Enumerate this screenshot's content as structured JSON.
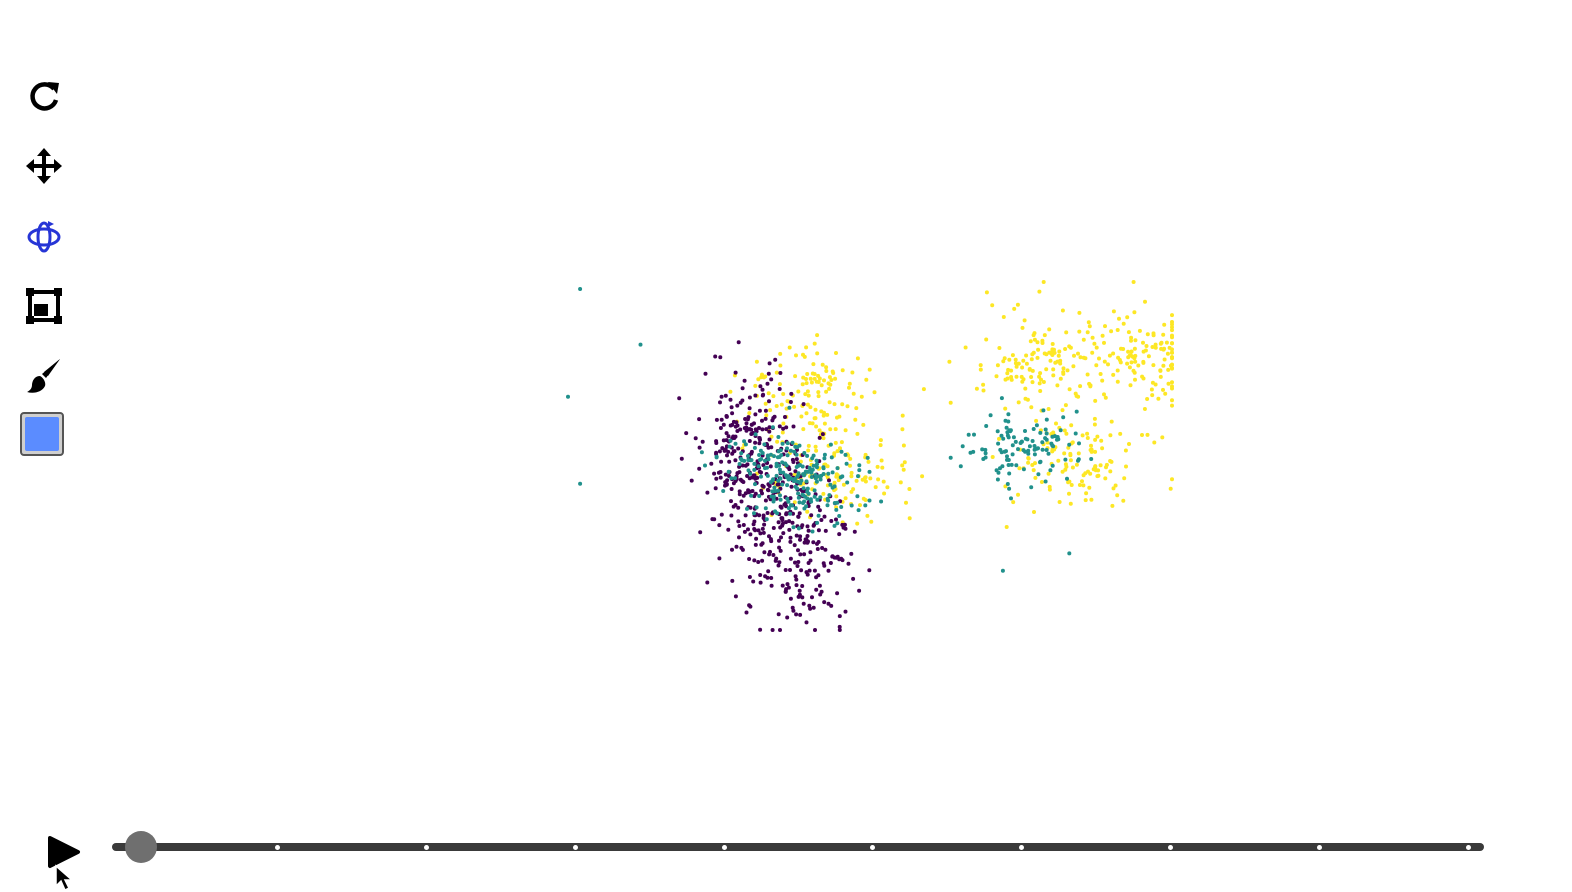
{
  "toolbar": {
    "tools": [
      {
        "name": "reset-view",
        "icon": "redo-icon",
        "active": false
      },
      {
        "name": "pan",
        "icon": "move-arrows-icon",
        "active": false
      },
      {
        "name": "orbit-rotate",
        "icon": "orbit-icon",
        "active": true
      },
      {
        "name": "zoom-to-box",
        "icon": "box-select-icon",
        "active": false
      },
      {
        "name": "brush",
        "icon": "paintbrush-icon",
        "active": false
      }
    ],
    "color_picker": {
      "icon": "color-swatch-icon",
      "value": "#5b8cff"
    },
    "active_color": "#2635d6",
    "icon_color": "#000000"
  },
  "playback": {
    "icon": "play-icon",
    "slider": {
      "tick_count": 10,
      "current_fraction": 0.01
    }
  },
  "chart_data": {
    "type": "scatter",
    "title": "",
    "xlabel": "",
    "ylabel": "",
    "grid": false,
    "legend": "none",
    "series": [
      {
        "color": "#440154",
        "cluster_centers": [
          [
            0.3,
            0.45
          ],
          [
            0.32,
            0.62
          ],
          [
            0.38,
            0.78
          ]
        ],
        "spread": [
          0.045,
          0.1
        ],
        "count": 520
      },
      {
        "color": "#21918c",
        "cluster_centers": [
          [
            0.35,
            0.52
          ],
          [
            0.4,
            0.6
          ],
          [
            0.75,
            0.48
          ]
        ],
        "spread": [
          0.05,
          0.05
        ],
        "count": 330
      },
      {
        "color": "#fde725",
        "cluster_centers": [
          [
            0.4,
            0.32
          ],
          [
            0.45,
            0.55
          ],
          [
            0.78,
            0.25
          ],
          [
            0.95,
            0.2
          ],
          [
            0.85,
            0.5
          ]
        ],
        "spread": [
          0.06,
          0.07
        ],
        "count": 620
      }
    ],
    "outliers": [
      {
        "color": "#21918c",
        "x": 0.02,
        "y": 0.02
      },
      {
        "color": "#21918c",
        "x": 0.12,
        "y": 0.18
      },
      {
        "color": "#21918c",
        "x": 0.0,
        "y": 0.33
      },
      {
        "color": "#21918c",
        "x": 0.02,
        "y": 0.58
      },
      {
        "color": "#21918c",
        "x": 0.72,
        "y": 0.83
      },
      {
        "color": "#21918c",
        "x": 0.83,
        "y": 0.78
      },
      {
        "color": "#fde725",
        "x": 1.0,
        "y": 0.34
      },
      {
        "color": "#fde725",
        "x": 0.92,
        "y": 0.12
      },
      {
        "color": "#440154",
        "x": 0.45,
        "y": 1.0
      },
      {
        "color": "#440154",
        "x": 0.45,
        "y": 0.96
      }
    ],
    "xlim": [
      0,
      1
    ],
    "ylim": [
      0,
      1
    ]
  }
}
